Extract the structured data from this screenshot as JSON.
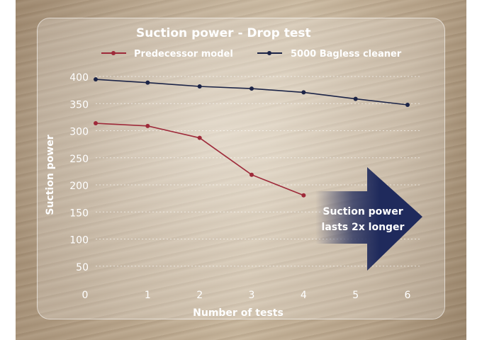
{
  "chart_data": {
    "type": "line",
    "title": "Suction power - Drop test",
    "xlabel": "Number of tests",
    "ylabel": "Suction power",
    "x_ticks": [
      "0",
      "1",
      "2",
      "3",
      "4",
      "5",
      "6"
    ],
    "y_ticks": [
      "400",
      "350",
      "300",
      "250",
      "200",
      "150",
      "100",
      "50"
    ],
    "xlim": [
      0,
      6
    ],
    "ylim": [
      0,
      400
    ],
    "grid": true,
    "legend_position": "top",
    "series": [
      {
        "name": "Predecessor model",
        "color": "#9e2a3a",
        "x": [
          0,
          1,
          2,
          3,
          4
        ],
        "y": [
          315,
          310,
          288,
          220,
          182
        ]
      },
      {
        "name": "5000 Bagless cleaner",
        "color": "#1c2447",
        "x": [
          0,
          1,
          2,
          3,
          4,
          5,
          6
        ],
        "y": [
          396,
          390,
          383,
          379,
          372,
          360,
          349
        ]
      }
    ],
    "callout": {
      "lines": [
        "Suction power",
        "lasts 2x longer"
      ],
      "arrow_color": "#1f2a5c"
    }
  }
}
